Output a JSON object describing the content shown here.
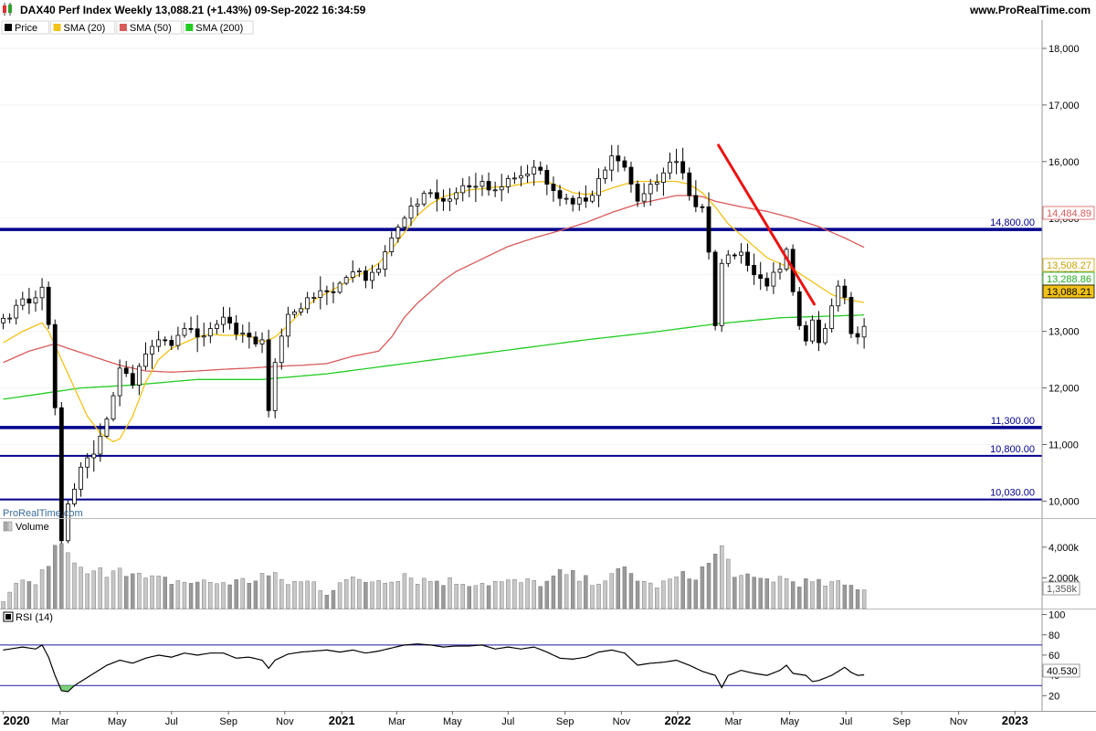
{
  "header": {
    "title": "DAX40 Perf Index Weekly 13,088.21 (+1.43%) 09-Sep-2022 16:34:59",
    "site": "www.ProRealTime.com",
    "watermark": "ProRealTime.com",
    "logo_icon": "candlestick-icon"
  },
  "colors": {
    "candle_up": "#ffffff",
    "candle_down": "#000000",
    "sma20": "#f2c218",
    "sma50": "#d85a5a",
    "sma200": "#22cc22",
    "trendline": "#ee1111",
    "level": "#00008b",
    "volume": "#9a9a9a",
    "rsi_line": "#000000",
    "rsi_oversold_fill": "#7ed27e"
  },
  "legend": [
    {
      "label": "Price",
      "color": "#000000"
    },
    {
      "label": "SMA (20)",
      "color": "#f2c218"
    },
    {
      "label": "SMA (50)",
      "color": "#d85a5a"
    },
    {
      "label": "SMA (200)",
      "color": "#22cc22"
    }
  ],
  "price_axis": {
    "ticks": [
      {
        "value": 10000,
        "label": "10,000"
      },
      {
        "value": 11000,
        "label": "11,000"
      },
      {
        "value": 12000,
        "label": "12,000"
      },
      {
        "value": 13000,
        "label": "13,000"
      },
      {
        "value": 14000,
        "label": "14,000"
      },
      {
        "value": 15000,
        "label": "15,000"
      },
      {
        "value": 16000,
        "label": "16,000"
      },
      {
        "value": 17000,
        "label": "17,000"
      },
      {
        "value": 18000,
        "label": "18,000"
      }
    ],
    "value_labels": [
      {
        "value": 14484.89,
        "label": "14,484.89",
        "color": "#d85a5a",
        "fill": "#ffffff"
      },
      {
        "value": 13508.27,
        "label": "13,508.27",
        "color": "#c8a200",
        "fill": "#ffffff"
      },
      {
        "value": 13288.86,
        "label": "13,288.86",
        "color": "#22aa22",
        "fill": "#ffffff"
      },
      {
        "value": 13088.21,
        "label": "13,088.21",
        "color": "#000000",
        "fill": "#f2c218"
      }
    ]
  },
  "levels": [
    {
      "value": 14800,
      "label": "14,800.00",
      "width": 3.5
    },
    {
      "value": 11300,
      "label": "11,300.00",
      "width": 3.5
    },
    {
      "value": 10800,
      "label": "10,800.00",
      "width": 2
    },
    {
      "value": 10030,
      "label": "10,030.00",
      "width": 2
    }
  ],
  "trendline": {
    "start": {
      "week": 110.5,
      "value": 16290
    },
    "end": {
      "week": 125.3,
      "value": 13480
    }
  },
  "time_axis": [
    {
      "label": "2020",
      "week": 0.0,
      "bold": true
    },
    {
      "label": "Mar",
      "week": 8.8,
      "bold": false
    },
    {
      "label": "May",
      "week": 17.6,
      "bold": false
    },
    {
      "label": "Jul",
      "week": 26.0,
      "bold": false
    },
    {
      "label": "Sep",
      "week": 34.8,
      "bold": false
    },
    {
      "label": "Nov",
      "week": 43.5,
      "bold": false
    },
    {
      "label": "2021",
      "week": 52.3,
      "bold": true
    },
    {
      "label": "Mar",
      "week": 60.8,
      "bold": false
    },
    {
      "label": "May",
      "week": 69.4,
      "bold": false
    },
    {
      "label": "Jul",
      "week": 78.0,
      "bold": false
    },
    {
      "label": "Sep",
      "week": 86.8,
      "bold": false
    },
    {
      "label": "Nov",
      "week": 95.5,
      "bold": false
    },
    {
      "label": "2022",
      "week": 104.2,
      "bold": true
    },
    {
      "label": "Mar",
      "week": 112.8,
      "bold": false
    },
    {
      "label": "May",
      "week": 121.5,
      "bold": false
    },
    {
      "label": "Jul",
      "week": 130.2,
      "bold": false
    },
    {
      "label": "Sep",
      "week": 138.8,
      "bold": false
    },
    {
      "label": "Nov",
      "week": 147.6,
      "bold": false
    },
    {
      "label": "2023",
      "week": 156.3,
      "bold": true
    }
  ],
  "volume_panel": {
    "title": "Volume",
    "ticks": [
      {
        "value": 4000,
        "label": "4,000k"
      },
      {
        "value": 2000,
        "label": "2,000k"
      }
    ],
    "last_label": "1,358k"
  },
  "rsi_panel": {
    "title": "RSI (14)",
    "ticks": [
      {
        "value": 100,
        "label": "100"
      },
      {
        "value": 80,
        "label": "80"
      },
      {
        "value": 60,
        "label": "60"
      },
      {
        "value": 40,
        "label": "40"
      },
      {
        "value": 20,
        "label": "20"
      }
    ],
    "bands": [
      70,
      30
    ],
    "last_label": "40.530"
  },
  "chart_data": {
    "type": "candlestick",
    "title": "DAX40 Perf Index Weekly",
    "timeframe": "Weekly",
    "last_close": 13088.21,
    "change_pct": "+1.43%",
    "price_range": [
      9700,
      18500
    ],
    "x_range_weeks": [
      -0.5,
      160.5
    ],
    "x_week0": "2020-01-03",
    "anchors": [
      [
        0,
        13230
      ],
      [
        2,
        13460
      ],
      [
        4,
        13500
      ],
      [
        6,
        13780
      ],
      [
        7,
        13120
      ],
      [
        8,
        11650
      ],
      [
        9,
        9300
      ],
      [
        10,
        9950
      ],
      [
        12,
        10600
      ],
      [
        14,
        10830
      ],
      [
        16,
        11450
      ],
      [
        18,
        12350
      ],
      [
        20,
        12050
      ],
      [
        22,
        12600
      ],
      [
        24,
        12850
      ],
      [
        26,
        12750
      ],
      [
        28,
        13050
      ],
      [
        30,
        12900
      ],
      [
        32,
        13050
      ],
      [
        34,
        13250
      ],
      [
        36,
        12950
      ],
      [
        38,
        12900
      ],
      [
        40,
        12850
      ],
      [
        41,
        11600
      ],
      [
        42,
        12450
      ],
      [
        44,
        13300
      ],
      [
        46,
        13400
      ],
      [
        48,
        13600
      ],
      [
        50,
        13700
      ],
      [
        52,
        13850
      ],
      [
        54,
        14050
      ],
      [
        56,
        13900
      ],
      [
        58,
        14100
      ],
      [
        60,
        14650
      ],
      [
        62,
        15000
      ],
      [
        64,
        15250
      ],
      [
        66,
        15450
      ],
      [
        68,
        15300
      ],
      [
        70,
        15450
      ],
      [
        72,
        15550
      ],
      [
        74,
        15650
      ],
      [
        76,
        15500
      ],
      [
        78,
        15700
      ],
      [
        80,
        15750
      ],
      [
        82,
        15900
      ],
      [
        84,
        15600
      ],
      [
        86,
        15350
      ],
      [
        88,
        15250
      ],
      [
        90,
        15300
      ],
      [
        92,
        15700
      ],
      [
        94,
        16100
      ],
      [
        96,
        15900
      ],
      [
        98,
        15300
      ],
      [
        100,
        15600
      ],
      [
        102,
        15800
      ],
      [
        104,
        16000
      ],
      [
        105,
        15800
      ],
      [
        106,
        15400
      ],
      [
        108,
        15200
      ],
      [
        109,
        14400
      ],
      [
        110,
        13100
      ],
      [
        111,
        14200
      ],
      [
        112,
        14350
      ],
      [
        114,
        14400
      ],
      [
        116,
        14000
      ],
      [
        118,
        13800
      ],
      [
        120,
        14100
      ],
      [
        121,
        14450
      ],
      [
        122,
        13700
      ],
      [
        123,
        13100
      ],
      [
        124,
        12830
      ],
      [
        125,
        13200
      ],
      [
        126,
        12800
      ],
      [
        127,
        13050
      ],
      [
        128,
        13450
      ],
      [
        129,
        13800
      ],
      [
        130,
        13600
      ],
      [
        131,
        12960
      ],
      [
        132,
        12900
      ],
      [
        133,
        13088.21
      ]
    ],
    "sma20_anchors": [
      [
        0,
        12800
      ],
      [
        3,
        13000
      ],
      [
        6,
        13150
      ],
      [
        7,
        13000
      ],
      [
        9,
        12500
      ],
      [
        11,
        12000
      ],
      [
        13,
        11500
      ],
      [
        15,
        11200
      ],
      [
        17,
        11050
      ],
      [
        18,
        11100
      ],
      [
        20,
        11500
      ],
      [
        22,
        12100
      ],
      [
        24,
        12500
      ],
      [
        26,
        12700
      ],
      [
        28,
        12800
      ],
      [
        30,
        12900
      ],
      [
        32,
        12950
      ],
      [
        34,
        12930
      ],
      [
        36,
        12930
      ],
      [
        38,
        12930
      ],
      [
        40,
        12800
      ],
      [
        42,
        12900
      ],
      [
        44,
        13100
      ],
      [
        46,
        13350
      ],
      [
        48,
        13550
      ],
      [
        50,
        13680
      ],
      [
        52,
        13800
      ],
      [
        54,
        13950
      ],
      [
        56,
        14050
      ],
      [
        58,
        14200
      ],
      [
        60,
        14450
      ],
      [
        62,
        14750
      ],
      [
        64,
        15050
      ],
      [
        66,
        15250
      ],
      [
        68,
        15380
      ],
      [
        70,
        15440
      ],
      [
        72,
        15500
      ],
      [
        74,
        15520
      ],
      [
        76,
        15550
      ],
      [
        78,
        15560
      ],
      [
        80,
        15600
      ],
      [
        82,
        15640
      ],
      [
        84,
        15650
      ],
      [
        86,
        15550
      ],
      [
        88,
        15450
      ],
      [
        90,
        15420
      ],
      [
        92,
        15450
      ],
      [
        94,
        15530
      ],
      [
        96,
        15600
      ],
      [
        98,
        15650
      ],
      [
        100,
        15650
      ],
      [
        102,
        15650
      ],
      [
        104,
        15650
      ],
      [
        106,
        15600
      ],
      [
        108,
        15450
      ],
      [
        110,
        15200
      ],
      [
        112,
        14900
      ],
      [
        114,
        14700
      ],
      [
        116,
        14500
      ],
      [
        118,
        14300
      ],
      [
        120,
        14200
      ],
      [
        122,
        14100
      ],
      [
        124,
        13950
      ],
      [
        126,
        13800
      ],
      [
        128,
        13650
      ],
      [
        130,
        13570
      ],
      [
        133,
        13508.27
      ]
    ],
    "sma50_anchors": [
      [
        0,
        12450
      ],
      [
        4,
        12650
      ],
      [
        8,
        12780
      ],
      [
        10,
        12700
      ],
      [
        14,
        12550
      ],
      [
        18,
        12400
      ],
      [
        22,
        12300
      ],
      [
        26,
        12280
      ],
      [
        30,
        12300
      ],
      [
        34,
        12330
      ],
      [
        38,
        12350
      ],
      [
        42,
        12380
      ],
      [
        46,
        12400
      ],
      [
        50,
        12430
      ],
      [
        54,
        12560
      ],
      [
        58,
        12650
      ],
      [
        60,
        12900
      ],
      [
        62,
        13250
      ],
      [
        64,
        13500
      ],
      [
        66,
        13700
      ],
      [
        68,
        13900
      ],
      [
        70,
        14060
      ],
      [
        74,
        14280
      ],
      [
        78,
        14500
      ],
      [
        82,
        14650
      ],
      [
        86,
        14780
      ],
      [
        90,
        14920
      ],
      [
        94,
        15100
      ],
      [
        98,
        15250
      ],
      [
        102,
        15350
      ],
      [
        104,
        15400
      ],
      [
        106,
        15400
      ],
      [
        108,
        15380
      ],
      [
        110,
        15300
      ],
      [
        114,
        15200
      ],
      [
        118,
        15120
      ],
      [
        122,
        15000
      ],
      [
        126,
        14850
      ],
      [
        130,
        14650
      ],
      [
        133,
        14484.89
      ]
    ],
    "sma200_anchors": [
      [
        0,
        11800
      ],
      [
        6,
        11900
      ],
      [
        12,
        12000
      ],
      [
        20,
        12050
      ],
      [
        30,
        12150
      ],
      [
        40,
        12150
      ],
      [
        50,
        12250
      ],
      [
        60,
        12400
      ],
      [
        70,
        12550
      ],
      [
        80,
        12700
      ],
      [
        90,
        12850
      ],
      [
        100,
        12980
      ],
      [
        110,
        13130
      ],
      [
        120,
        13240
      ],
      [
        133,
        13288.86
      ]
    ],
    "volume_anchors": [
      [
        0,
        400
      ],
      [
        2,
        1500
      ],
      [
        5,
        1700
      ],
      [
        8,
        3600
      ],
      [
        9,
        4900
      ],
      [
        10,
        3200
      ],
      [
        12,
        2400
      ],
      [
        14,
        2200
      ],
      [
        16,
        2500
      ],
      [
        18,
        3000
      ],
      [
        20,
        2200
      ],
      [
        22,
        1900
      ],
      [
        26,
        1800
      ],
      [
        30,
        1700
      ],
      [
        34,
        1700
      ],
      [
        38,
        1800
      ],
      [
        40,
        2200
      ],
      [
        42,
        2000
      ],
      [
        44,
        1700
      ],
      [
        48,
        1700
      ],
      [
        50,
        1000
      ],
      [
        52,
        1800
      ],
      [
        56,
        1800
      ],
      [
        60,
        2000
      ],
      [
        62,
        2300
      ],
      [
        64,
        1900
      ],
      [
        68,
        1800
      ],
      [
        72,
        1700
      ],
      [
        76,
        1700
      ],
      [
        80,
        1700
      ],
      [
        84,
        1700
      ],
      [
        86,
        2200
      ],
      [
        88,
        2100
      ],
      [
        90,
        1800
      ],
      [
        94,
        2000
      ],
      [
        96,
        2500
      ],
      [
        98,
        2000
      ],
      [
        100,
        1500
      ],
      [
        102,
        1600
      ],
      [
        104,
        2000
      ],
      [
        106,
        2100
      ],
      [
        108,
        2500
      ],
      [
        110,
        3400
      ],
      [
        111,
        3800
      ],
      [
        112,
        3000
      ],
      [
        114,
        2000
      ],
      [
        116,
        1800
      ],
      [
        118,
        1900
      ],
      [
        120,
        2000
      ],
      [
        122,
        1800
      ],
      [
        124,
        1700
      ],
      [
        126,
        1600
      ],
      [
        128,
        1600
      ],
      [
        130,
        1500
      ],
      [
        133,
        1358
      ]
    ],
    "rsi_anchors": [
      [
        0,
        65
      ],
      [
        3,
        68
      ],
      [
        5,
        66
      ],
      [
        6,
        70
      ],
      [
        7,
        58
      ],
      [
        8,
        40
      ],
      [
        9,
        25
      ],
      [
        10,
        24
      ],
      [
        11,
        30
      ],
      [
        12,
        34
      ],
      [
        14,
        42
      ],
      [
        16,
        50
      ],
      [
        18,
        55
      ],
      [
        20,
        52
      ],
      [
        22,
        57
      ],
      [
        24,
        60
      ],
      [
        26,
        58
      ],
      [
        28,
        62
      ],
      [
        30,
        60
      ],
      [
        32,
        62
      ],
      [
        34,
        62
      ],
      [
        36,
        57
      ],
      [
        38,
        58
      ],
      [
        40,
        55
      ],
      [
        41,
        47
      ],
      [
        42,
        55
      ],
      [
        44,
        61
      ],
      [
        46,
        63
      ],
      [
        48,
        64
      ],
      [
        50,
        65
      ],
      [
        52,
        63
      ],
      [
        54,
        65
      ],
      [
        56,
        62
      ],
      [
        58,
        64
      ],
      [
        60,
        67
      ],
      [
        62,
        70
      ],
      [
        64,
        71
      ],
      [
        66,
        70
      ],
      [
        68,
        68
      ],
      [
        70,
        69
      ],
      [
        72,
        69
      ],
      [
        74,
        70
      ],
      [
        76,
        66
      ],
      [
        78,
        68
      ],
      [
        80,
        66
      ],
      [
        82,
        68
      ],
      [
        84,
        63
      ],
      [
        86,
        57
      ],
      [
        88,
        56
      ],
      [
        90,
        58
      ],
      [
        92,
        63
      ],
      [
        94,
        65
      ],
      [
        96,
        62
      ],
      [
        98,
        50
      ],
      [
        100,
        52
      ],
      [
        102,
        53
      ],
      [
        104,
        55
      ],
      [
        106,
        50
      ],
      [
        108,
        44
      ],
      [
        110,
        40
      ],
      [
        111,
        28
      ],
      [
        112,
        40
      ],
      [
        114,
        45
      ],
      [
        116,
        42
      ],
      [
        118,
        40
      ],
      [
        120,
        45
      ],
      [
        121,
        50
      ],
      [
        122,
        42
      ],
      [
        124,
        40
      ],
      [
        125,
        34
      ],
      [
        126,
        35
      ],
      [
        128,
        40
      ],
      [
        130,
        48
      ],
      [
        131,
        43
      ],
      [
        132,
        40
      ],
      [
        133,
        40.53
      ]
    ]
  }
}
